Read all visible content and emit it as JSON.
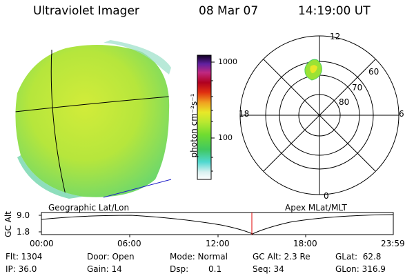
{
  "title": {
    "instrument": "Ultraviolet Imager",
    "date": "08 Mar 07",
    "time": "14:19:00 UT"
  },
  "colorbar": {
    "label": "photon cm⁻²s⁻¹",
    "ticks": [
      "1000",
      "100"
    ]
  },
  "polar_plot": {
    "mlt_labels": {
      "top": "12",
      "right": "6",
      "bottom": "0",
      "left": "18"
    },
    "mlat_labels": [
      "60",
      "70",
      "80"
    ]
  },
  "captions": {
    "left": "Geographic Lat/Lon",
    "right": "Apex MLat/MLT"
  },
  "altitude_plot": {
    "axis_label": "GC Alt",
    "y_ticks": [
      "9.0",
      "1.8"
    ],
    "time_ticks": [
      "00:00",
      "06:00",
      "12:00",
      "18:00",
      "23:59"
    ],
    "current_time_marker": "14:19"
  },
  "status": {
    "flt": "Flt: 1304",
    "ip": "IP: 36.0",
    "door": "Door: Open",
    "gain": "Gain: 14",
    "mode": "Mode: Normal",
    "dsp_label": "Dsp:",
    "dsp_value": "0.1",
    "gc_alt": "GC Alt: 2.3 Re",
    "seq": "Seq: 34",
    "glat": "GLat:  62.8",
    "glon": "GLon: 316.9"
  },
  "colors": {
    "earth_disk": "#b6e63c",
    "oval": "#9be234",
    "marker": "#e00000",
    "limb_line": "#2020c8"
  }
}
